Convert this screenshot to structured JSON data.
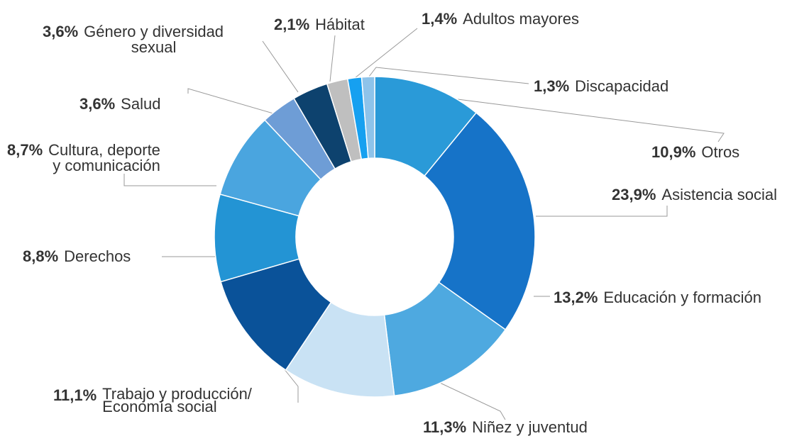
{
  "chart_data": {
    "type": "pie",
    "donut": true,
    "categories": [
      "Otros",
      "Asistencia social",
      "Educación y formación",
      "Niñez y juventud",
      "Trabajo y producción/\nEconomía social",
      "Derechos",
      "Cultura, deporte\ny comunicación",
      "Salud",
      "Género y diversidad\nsexual",
      "Hábitat",
      "Adultos mayores",
      "Discapacidad"
    ],
    "values": [
      10.9,
      23.9,
      13.2,
      11.3,
      11.1,
      8.8,
      8.7,
      3.6,
      3.6,
      2.1,
      1.4,
      1.3
    ],
    "value_labels": [
      "10,9%",
      "23,9%",
      "13,2%",
      "11,3%",
      "11,1%",
      "8,8%",
      "8,7%",
      "3,6%",
      "3,6%",
      "2,1%",
      "1,4%",
      "1,3%"
    ],
    "colors": [
      "#2a9ad8",
      "#1673c8",
      "#4ea9e0",
      "#c9e2f4",
      "#0a5299",
      "#2394d4",
      "#4aa5df",
      "#6e9dd6",
      "#0d426e",
      "#bfbfbf",
      "#16a0f0",
      "#8ec3ea"
    ]
  }
}
